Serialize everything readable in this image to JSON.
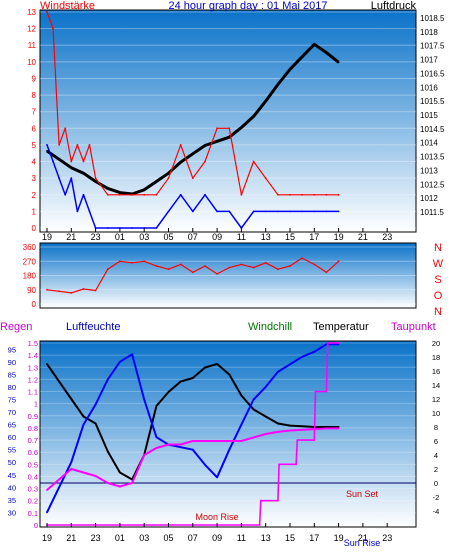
{
  "panel1": {
    "title": "24 hour graph day : 01 Mai 2017",
    "left_label": "Windstärke",
    "right_label": "Luftdruck"
  },
  "panel2": {
    "compass": [
      "N",
      "W",
      "S",
      "O",
      "N"
    ]
  },
  "panel3": {
    "labels": {
      "regen": "Regen",
      "luftfeuchte": "Luftfeuchte",
      "windchill": "Windchill",
      "temperatur": "Temperatur",
      "taupunkt": "Taupunkt"
    },
    "annotations": {
      "moon_rise": "Moon Rise",
      "sun_set": "Sun Set",
      "sun_rise": "Sun Rise"
    }
  },
  "chart_data": [
    {
      "type": "line",
      "title": "24 hour graph day : 01 Mai 2017",
      "x_ticks": [
        "19",
        "21",
        "23",
        "01",
        "03",
        "05",
        "07",
        "09",
        "11",
        "13",
        "15",
        "17",
        "19",
        "21",
        "23"
      ],
      "left_axis": {
        "label": "Windstärke",
        "ylim": [
          0,
          13
        ],
        "ticks": [
          0,
          1,
          2,
          3,
          4,
          5,
          6,
          7,
          8,
          9,
          10,
          11,
          12,
          13
        ]
      },
      "right_axis": {
        "label": "Luftdruck",
        "ticks": [
          "1011.5",
          "1012",
          "1012.5",
          "1013",
          "1013.5",
          "1014",
          "1014.5",
          "1015",
          "1015.5",
          "1016",
          "1016.5",
          "1017",
          "1017.5",
          "1018",
          "1018.5"
        ]
      },
      "series": [
        {
          "name": "Luftdruck",
          "color": "#000000",
          "x": [
            0,
            1,
            2,
            3,
            4,
            5,
            6,
            7,
            8,
            9,
            10,
            11,
            12,
            13,
            14,
            15,
            16,
            17,
            18,
            19,
            20,
            21,
            22,
            23,
            24
          ],
          "y": [
            1013.7,
            1013.4,
            1013.1,
            1012.9,
            1012.6,
            1012.35,
            1012.2,
            1012.15,
            1012.3,
            1012.6,
            1012.9,
            1013.3,
            1013.6,
            1013.9,
            1014.05,
            1014.2,
            1014.55,
            1014.95,
            1015.5,
            1016.1,
            1016.65,
            1017.1,
            1017.55,
            1017.25,
            1016.9
          ]
        },
        {
          "name": "Windstärke (Böen)",
          "color": "#ff0000",
          "x": [
            0,
            0.5,
            1,
            1.5,
            2,
            2.5,
            3,
            3.5,
            4,
            5,
            6,
            7,
            8,
            9,
            10,
            11,
            12,
            13,
            14,
            15,
            16,
            17,
            18,
            19,
            20,
            21,
            22,
            23,
            24
          ],
          "y": [
            13,
            12,
            5,
            6,
            4,
            5,
            4,
            5,
            3,
            2,
            2,
            2,
            2,
            2,
            3,
            5,
            3,
            4,
            6,
            6,
            2,
            4,
            3,
            2,
            2,
            2,
            2,
            2,
            2
          ]
        },
        {
          "name": "Windstärke (Mittel)",
          "color": "#0000ff",
          "x": [
            0,
            0.5,
            1,
            1.5,
            2,
            2.5,
            3,
            3.5,
            4,
            5,
            6,
            7,
            8,
            9,
            10,
            11,
            12,
            13,
            14,
            15,
            16,
            17,
            18,
            19,
            20,
            21,
            22,
            23,
            24
          ],
          "y": [
            5,
            4,
            3,
            2,
            3,
            1,
            2,
            1,
            0,
            0,
            0,
            0,
            0,
            0,
            1,
            2,
            1,
            2,
            1,
            1,
            0,
            1,
            1,
            1,
            1,
            1,
            1,
            1,
            1
          ]
        }
      ]
    },
    {
      "type": "line",
      "x_ticks": [
        "19",
        "21",
        "23",
        "01",
        "03",
        "05",
        "07",
        "09",
        "11",
        "13",
        "15",
        "17",
        "19",
        "21",
        "23"
      ],
      "left_axis": {
        "ylim": [
          0,
          360
        ],
        "ticks": [
          0,
          45,
          90,
          135,
          180,
          225,
          270,
          315,
          360
        ]
      },
      "right_axis": {
        "ticks": [
          "N",
          "W",
          "S",
          "O",
          "N"
        ]
      },
      "series": [
        {
          "name": "Windrichtung",
          "color": "#ff0000",
          "x": [
            0,
            1,
            2,
            3,
            4,
            5,
            6,
            7,
            8,
            9,
            10,
            11,
            12,
            13,
            14,
            15,
            16,
            17,
            18,
            19,
            20,
            21,
            22,
            23,
            24
          ],
          "y": [
            90,
            80,
            70,
            95,
            85,
            220,
            270,
            260,
            270,
            240,
            220,
            250,
            200,
            240,
            190,
            230,
            250,
            230,
            260,
            220,
            240,
            290,
            250,
            200,
            270
          ]
        }
      ]
    },
    {
      "type": "line",
      "x_ticks": [
        "19",
        "21",
        "23",
        "01",
        "03",
        "05",
        "07",
        "09",
        "11",
        "13",
        "15",
        "17",
        "19",
        "21",
        "23"
      ],
      "left_axis_1": {
        "label": "Regen",
        "ylim": [
          0,
          1.5
        ],
        "ticks": [
          "0",
          "0.1",
          "0.2",
          "0.3",
          "0.4",
          "0.5",
          "0.6",
          "0.7",
          "0.8",
          "0.9",
          "1",
          "1.1",
          "1.2",
          "1.3",
          "1.4",
          "1.5"
        ]
      },
      "left_axis_2": {
        "label": "Luftfeuchte",
        "ylim": [
          25,
          97.5
        ],
        "ticks": [
          "30",
          "35",
          "40",
          "45",
          "50",
          "55",
          "60",
          "65",
          "70",
          "75",
          "80",
          "85",
          "90",
          "95"
        ]
      },
      "right_axis": {
        "label": "Taupunkt",
        "ylim": [
          -6,
          20
        ],
        "ticks": [
          "-4",
          "-2",
          "0",
          "2",
          "4",
          "6",
          "8",
          "10",
          "12",
          "14",
          "16",
          "18",
          "20"
        ]
      },
      "series": [
        {
          "name": "Temperatur",
          "color": "#000000",
          "x": [
            0,
            1,
            2,
            3,
            4,
            5,
            6,
            7,
            8,
            9,
            10,
            11,
            12,
            13,
            14,
            15,
            16,
            17,
            18,
            19,
            20,
            21,
            22,
            23,
            24
          ],
          "y": [
            17,
            14.5,
            12,
            9.5,
            8.5,
            4.5,
            1.5,
            0.5,
            4,
            11,
            13,
            14.5,
            15,
            16.5,
            17,
            15.5,
            12.5,
            10.5,
            9.5,
            8.5,
            8.2,
            8.1,
            8,
            8,
            8
          ]
        },
        {
          "name": "Luftfeuchte",
          "color": "#0000ff",
          "x": [
            0,
            1,
            2,
            3,
            4,
            5,
            6,
            7,
            8,
            9,
            10,
            11,
            12,
            13,
            14,
            15,
            16,
            17,
            18,
            19,
            20,
            21,
            22,
            23,
            24
          ],
          "y": [
            30,
            40,
            50,
            65,
            73,
            83,
            90,
            93,
            75,
            60,
            57,
            56,
            55,
            49,
            44,
            55,
            65,
            75,
            80,
            86,
            89,
            92,
            94,
            97,
            97
          ]
        },
        {
          "name": "Taupunkt",
          "color": "#ff00ff",
          "x": [
            0,
            1,
            2,
            3,
            4,
            5,
            6,
            7,
            8,
            9,
            10,
            11,
            12,
            13,
            14,
            15,
            16,
            17,
            18,
            19,
            20,
            21,
            22,
            23,
            24
          ],
          "y": [
            -1,
            0.5,
            2,
            1.5,
            1,
            0,
            -0.5,
            0,
            4,
            5,
            5.5,
            5.5,
            6,
            6,
            6,
            6,
            6,
            6.5,
            7,
            7.3,
            7.5,
            7.6,
            7.7,
            7.8,
            7.8
          ]
        },
        {
          "name": "Regen",
          "color": "#ff00ff",
          "x": [
            0,
            17.5,
            17.6,
            19,
            19.1,
            20.5,
            20.6,
            22,
            22.1,
            23,
            23.1,
            24
          ],
          "y": [
            0,
            0,
            0.2,
            0.2,
            0.5,
            0.5,
            0.7,
            0.7,
            1.1,
            1.1,
            1.5,
            1.5
          ]
        }
      ],
      "annotations": [
        "Moon Rise",
        "Sun Set",
        "Sun Rise"
      ]
    }
  ]
}
